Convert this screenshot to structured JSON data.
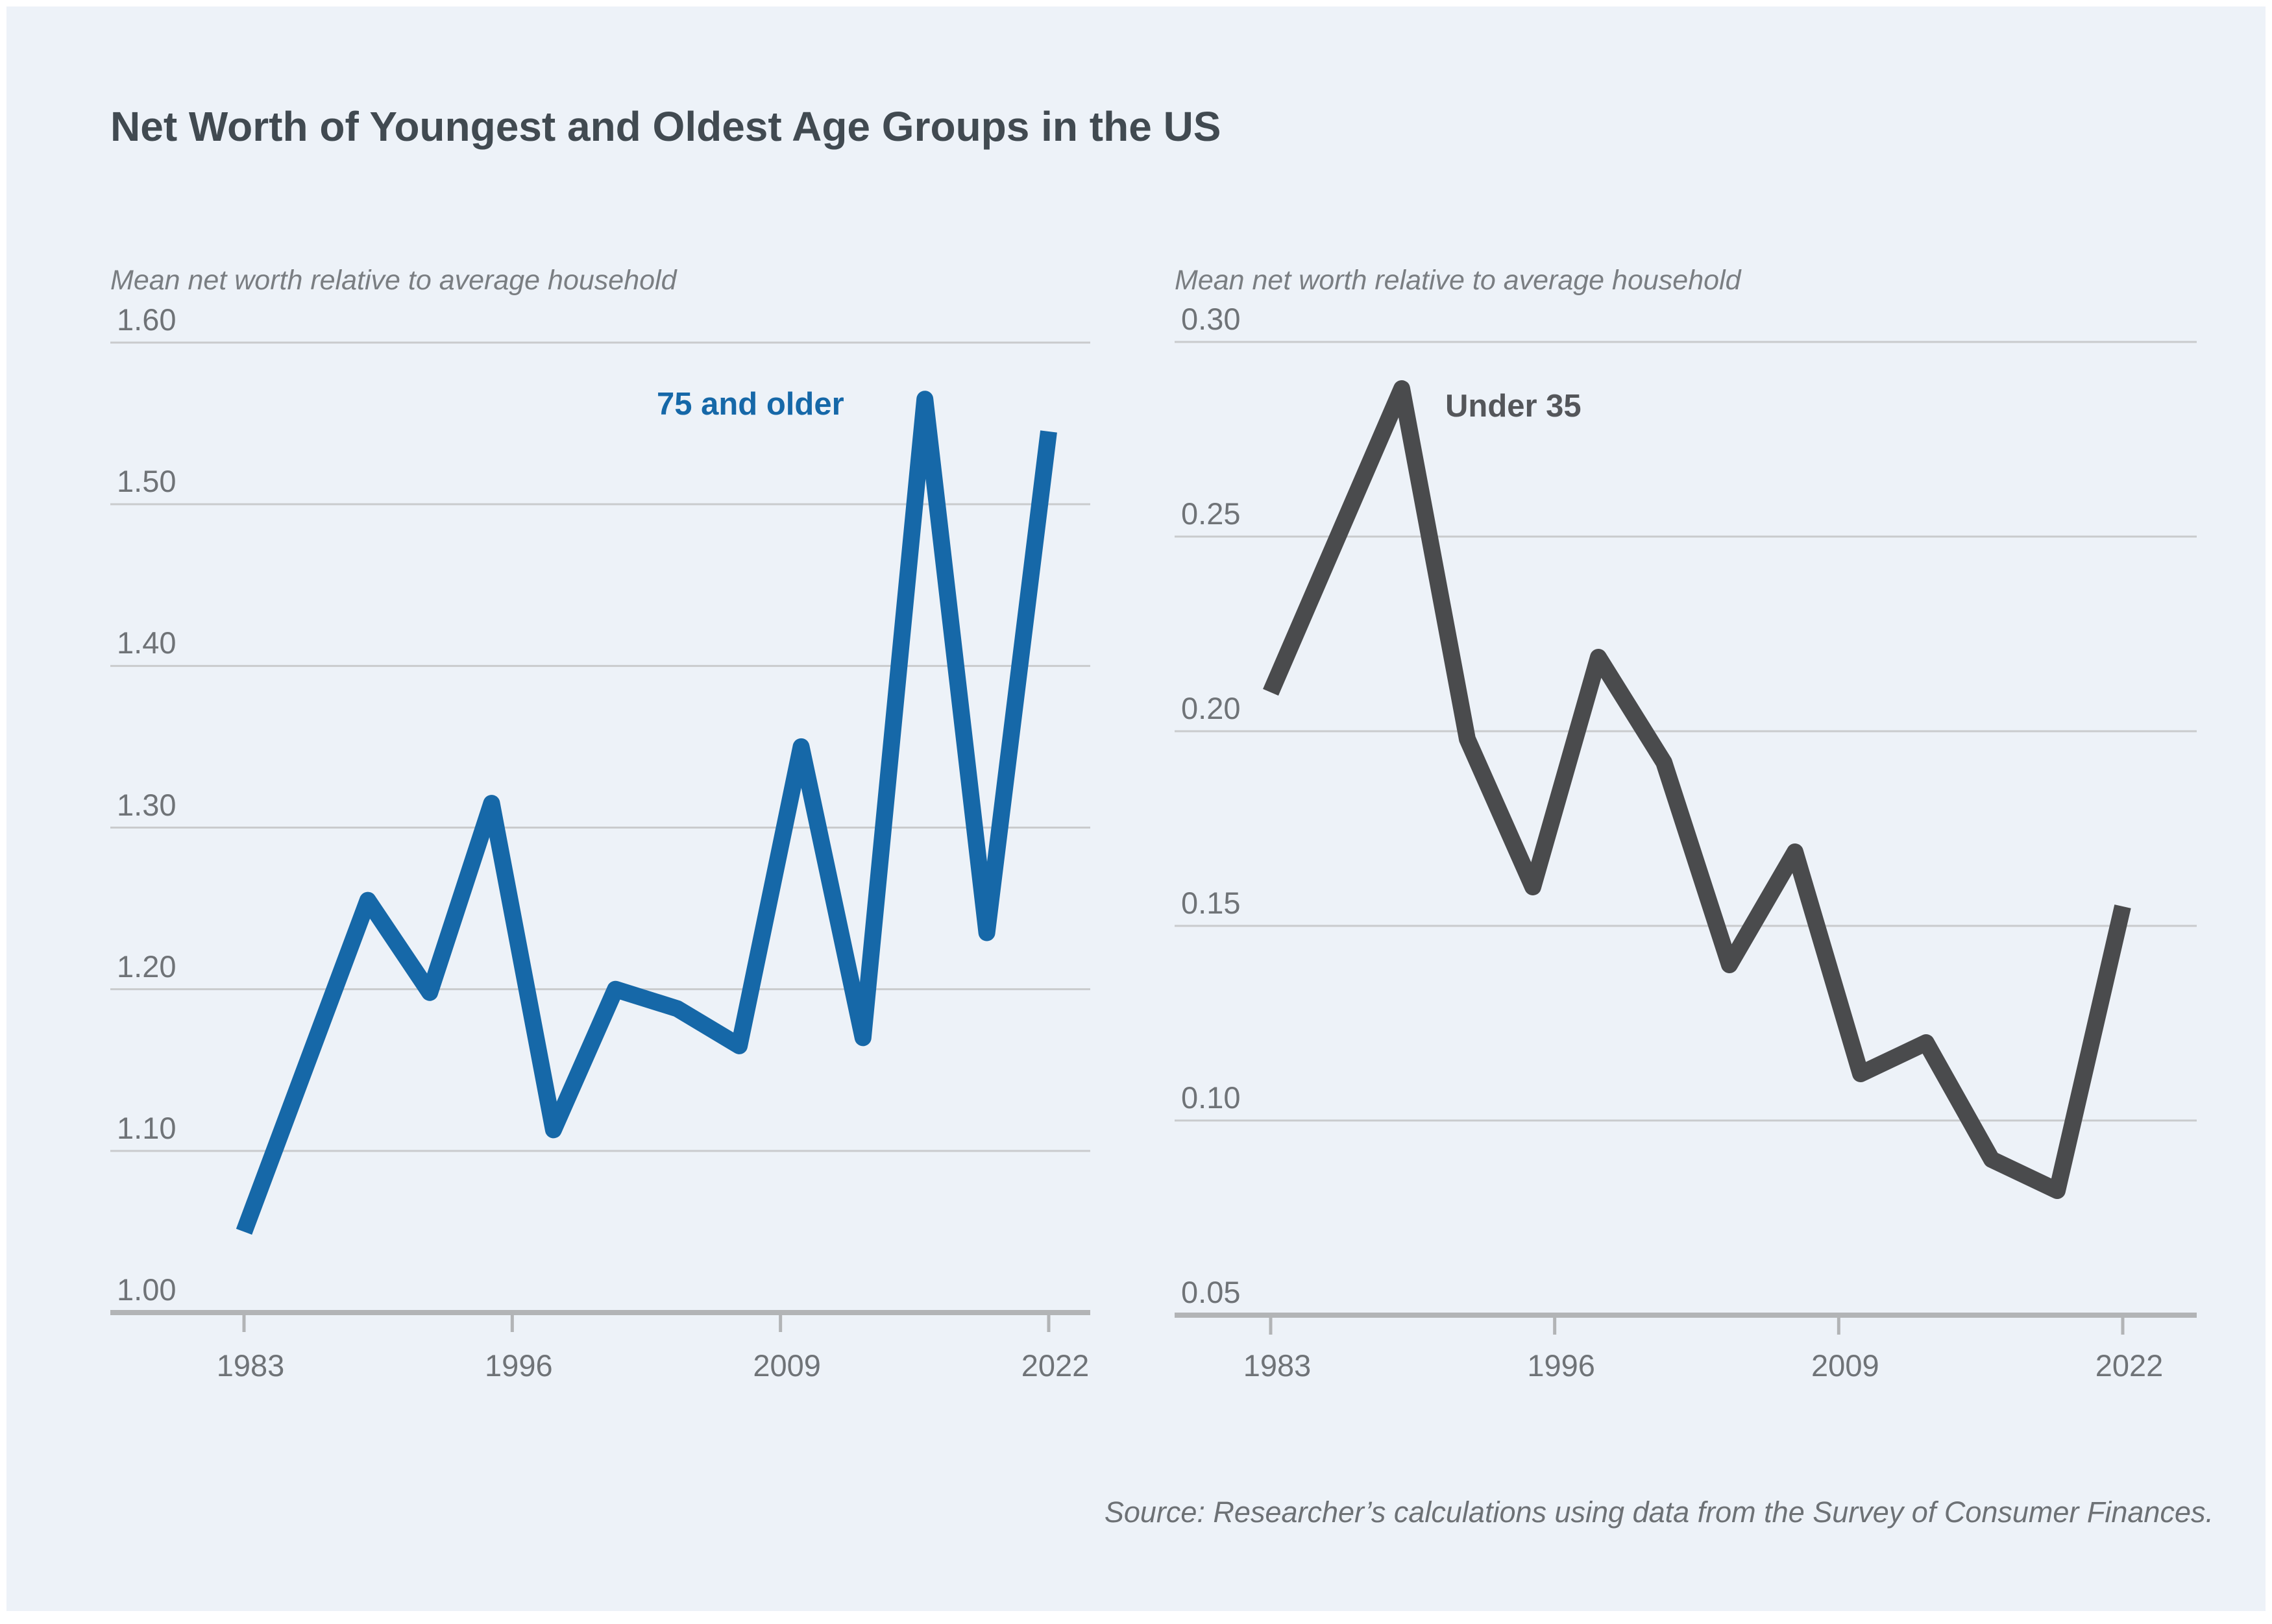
{
  "title": "Net Worth of Youngest and Oldest Age Groups in the US",
  "source_note": "Source: Researcher’s calculations using data from the Survey of Consumer Finances.",
  "colors": {
    "background": "#edf2f8",
    "blue_series": "#1668a8",
    "dark_series": "#4a4b4d",
    "gridline": "#c9cbcd",
    "axis_line": "#b2b4b6",
    "title_text": "#414a51",
    "caption_text": "#7a7e82",
    "tick_text": "#6f7377"
  },
  "chart_data": [
    {
      "type": "line",
      "series_label": "75 and older",
      "axis_label": "Mean net worth relative to average household",
      "color": "#1668a8",
      "x": [
        1983,
        1989,
        1992,
        1995,
        1998,
        2001,
        2004,
        2007,
        2010,
        2013,
        2016,
        2019,
        2022
      ],
      "values": [
        1.05,
        1.255,
        1.198,
        1.315,
        1.113,
        1.2,
        1.188,
        1.165,
        1.35,
        1.17,
        1.565,
        1.235,
        1.545
      ],
      "ylim": [
        1.0,
        1.6
      ],
      "ytick_labels": [
        "1.60",
        "1.50",
        "1.40",
        "1.30",
        "1.20",
        "1.10",
        "1.00"
      ],
      "xtick_labels": [
        "1983",
        "1996",
        "2009",
        "2022"
      ],
      "grid": true,
      "legend_position": "top-right-of-plot"
    },
    {
      "type": "line",
      "series_label": "Under 35",
      "axis_label": "Mean net worth relative to average household",
      "color": "#4a4b4d",
      "x": [
        1983,
        1989,
        1992,
        1995,
        1998,
        2001,
        2004,
        2007,
        2010,
        2013,
        2016,
        2019,
        2022
      ],
      "values": [
        0.21,
        0.288,
        0.198,
        0.16,
        0.219,
        0.192,
        0.14,
        0.169,
        0.112,
        0.12,
        0.09,
        0.082,
        0.155
      ],
      "ylim": [
        0.05,
        0.3
      ],
      "ytick_labels": [
        "0.30",
        "0.25",
        "0.20",
        "0.15",
        "0.10",
        "0.05"
      ],
      "xtick_labels": [
        "1983",
        "1996",
        "2009",
        "2022"
      ],
      "grid": true,
      "legend_position": "right-of-first-peak"
    }
  ]
}
